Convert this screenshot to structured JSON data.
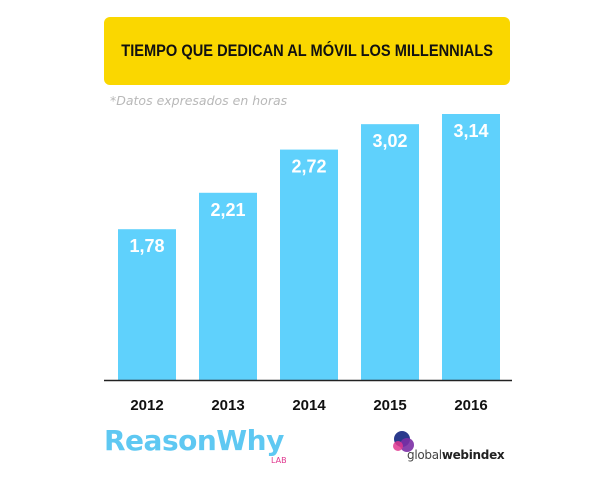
{
  "header": {
    "title": "TIEMPO QUE DEDICAN AL MÓVIL LOS MILLENNIALS",
    "subtitle": "*Datos expresados en horas"
  },
  "chart_data": {
    "type": "bar",
    "title": "TIEMPO QUE DEDICAN AL MÓVIL LOS MILLENNIALS",
    "subtitle": "*Datos expresados en horas",
    "categories": [
      "2012",
      "2013",
      "2014",
      "2015",
      "2016"
    ],
    "values": [
      1.78,
      2.21,
      2.72,
      3.02,
      3.14
    ],
    "value_labels": [
      "1,78",
      "2,21",
      "2,72",
      "3,02",
      "3,14"
    ],
    "xlabel": "",
    "ylabel": "",
    "ylim": [
      0,
      3.14
    ],
    "grid": false,
    "bar_color": "#5fd1fc",
    "label_color": "#ffffff"
  },
  "logos": {
    "left_main": "ReasonWhy",
    "left_sub": "LAB",
    "right_part1": "global",
    "right_part2": "webindex"
  },
  "colors": {
    "banner": "#fad700",
    "bar": "#5fd1fc",
    "reasonwhy": "#5ec8f2",
    "lab": "#e0388f"
  }
}
